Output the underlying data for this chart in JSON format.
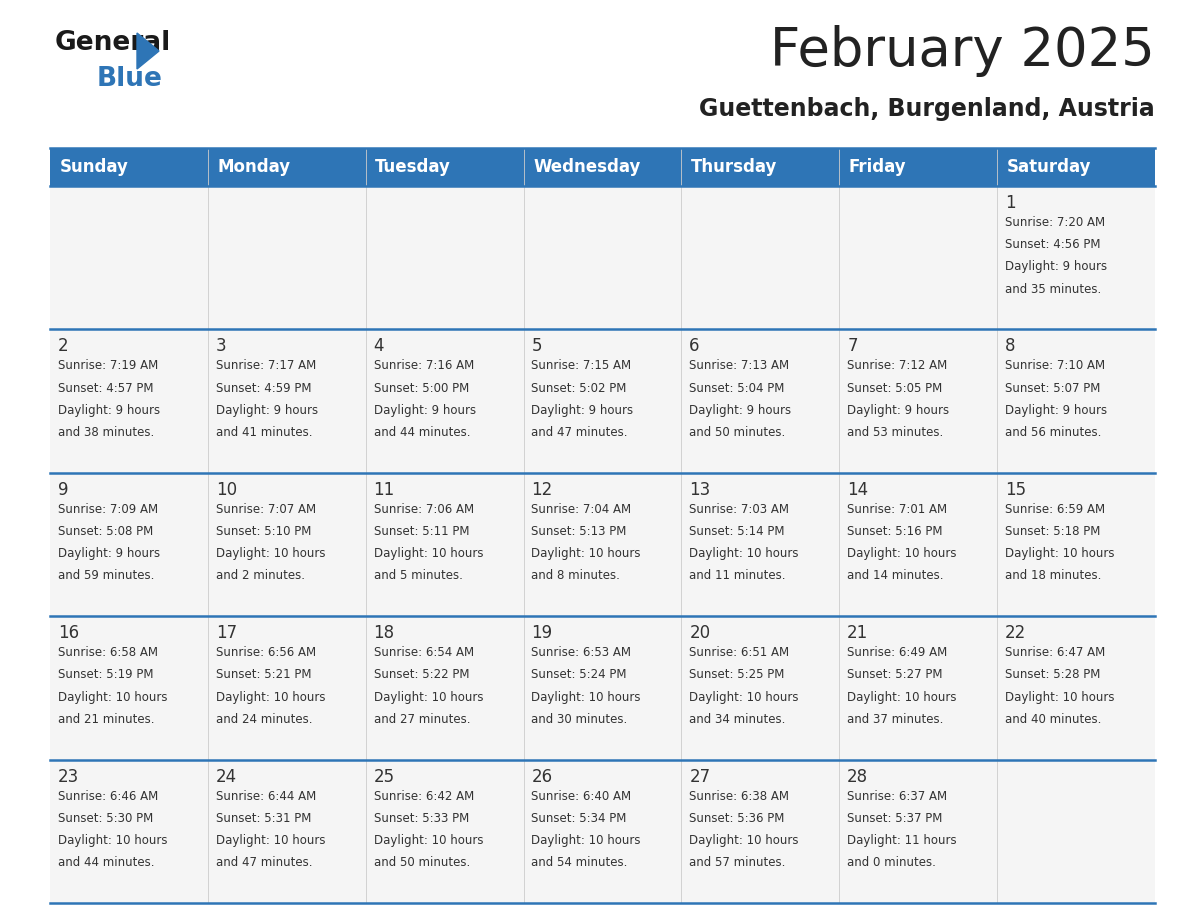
{
  "title": "February 2025",
  "subtitle": "Guettenbach, Burgenland, Austria",
  "header_bg": "#2E75B6",
  "header_text_color": "#FFFFFF",
  "cell_bg": "#F5F5F5",
  "border_color_blue": "#2E75B6",
  "border_color_light": "#BBBBBB",
  "text_color": "#333333",
  "days_of_week": [
    "Sunday",
    "Monday",
    "Tuesday",
    "Wednesday",
    "Thursday",
    "Friday",
    "Saturday"
  ],
  "calendar_data": [
    [
      null,
      null,
      null,
      null,
      null,
      null,
      {
        "day": "1",
        "sunrise": "7:20 AM",
        "sunset": "4:56 PM",
        "daylight_h": "9 hours",
        "daylight_m": "and 35 minutes."
      }
    ],
    [
      {
        "day": "2",
        "sunrise": "7:19 AM",
        "sunset": "4:57 PM",
        "daylight_h": "9 hours",
        "daylight_m": "and 38 minutes."
      },
      {
        "day": "3",
        "sunrise": "7:17 AM",
        "sunset": "4:59 PM",
        "daylight_h": "9 hours",
        "daylight_m": "and 41 minutes."
      },
      {
        "day": "4",
        "sunrise": "7:16 AM",
        "sunset": "5:00 PM",
        "daylight_h": "9 hours",
        "daylight_m": "and 44 minutes."
      },
      {
        "day": "5",
        "sunrise": "7:15 AM",
        "sunset": "5:02 PM",
        "daylight_h": "9 hours",
        "daylight_m": "and 47 minutes."
      },
      {
        "day": "6",
        "sunrise": "7:13 AM",
        "sunset": "5:04 PM",
        "daylight_h": "9 hours",
        "daylight_m": "and 50 minutes."
      },
      {
        "day": "7",
        "sunrise": "7:12 AM",
        "sunset": "5:05 PM",
        "daylight_h": "9 hours",
        "daylight_m": "and 53 minutes."
      },
      {
        "day": "8",
        "sunrise": "7:10 AM",
        "sunset": "5:07 PM",
        "daylight_h": "9 hours",
        "daylight_m": "and 56 minutes."
      }
    ],
    [
      {
        "day": "9",
        "sunrise": "7:09 AM",
        "sunset": "5:08 PM",
        "daylight_h": "9 hours",
        "daylight_m": "and 59 minutes."
      },
      {
        "day": "10",
        "sunrise": "7:07 AM",
        "sunset": "5:10 PM",
        "daylight_h": "10 hours",
        "daylight_m": "and 2 minutes."
      },
      {
        "day": "11",
        "sunrise": "7:06 AM",
        "sunset": "5:11 PM",
        "daylight_h": "10 hours",
        "daylight_m": "and 5 minutes."
      },
      {
        "day": "12",
        "sunrise": "7:04 AM",
        "sunset": "5:13 PM",
        "daylight_h": "10 hours",
        "daylight_m": "and 8 minutes."
      },
      {
        "day": "13",
        "sunrise": "7:03 AM",
        "sunset": "5:14 PM",
        "daylight_h": "10 hours",
        "daylight_m": "and 11 minutes."
      },
      {
        "day": "14",
        "sunrise": "7:01 AM",
        "sunset": "5:16 PM",
        "daylight_h": "10 hours",
        "daylight_m": "and 14 minutes."
      },
      {
        "day": "15",
        "sunrise": "6:59 AM",
        "sunset": "5:18 PM",
        "daylight_h": "10 hours",
        "daylight_m": "and 18 minutes."
      }
    ],
    [
      {
        "day": "16",
        "sunrise": "6:58 AM",
        "sunset": "5:19 PM",
        "daylight_h": "10 hours",
        "daylight_m": "and 21 minutes."
      },
      {
        "day": "17",
        "sunrise": "6:56 AM",
        "sunset": "5:21 PM",
        "daylight_h": "10 hours",
        "daylight_m": "and 24 minutes."
      },
      {
        "day": "18",
        "sunrise": "6:54 AM",
        "sunset": "5:22 PM",
        "daylight_h": "10 hours",
        "daylight_m": "and 27 minutes."
      },
      {
        "day": "19",
        "sunrise": "6:53 AM",
        "sunset": "5:24 PM",
        "daylight_h": "10 hours",
        "daylight_m": "and 30 minutes."
      },
      {
        "day": "20",
        "sunrise": "6:51 AM",
        "sunset": "5:25 PM",
        "daylight_h": "10 hours",
        "daylight_m": "and 34 minutes."
      },
      {
        "day": "21",
        "sunrise": "6:49 AM",
        "sunset": "5:27 PM",
        "daylight_h": "10 hours",
        "daylight_m": "and 37 minutes."
      },
      {
        "day": "22",
        "sunrise": "6:47 AM",
        "sunset": "5:28 PM",
        "daylight_h": "10 hours",
        "daylight_m": "and 40 minutes."
      }
    ],
    [
      {
        "day": "23",
        "sunrise": "6:46 AM",
        "sunset": "5:30 PM",
        "daylight_h": "10 hours",
        "daylight_m": "and 44 minutes."
      },
      {
        "day": "24",
        "sunrise": "6:44 AM",
        "sunset": "5:31 PM",
        "daylight_h": "10 hours",
        "daylight_m": "and 47 minutes."
      },
      {
        "day": "25",
        "sunrise": "6:42 AM",
        "sunset": "5:33 PM",
        "daylight_h": "10 hours",
        "daylight_m": "and 50 minutes."
      },
      {
        "day": "26",
        "sunrise": "6:40 AM",
        "sunset": "5:34 PM",
        "daylight_h": "10 hours",
        "daylight_m": "and 54 minutes."
      },
      {
        "day": "27",
        "sunrise": "6:38 AM",
        "sunset": "5:36 PM",
        "daylight_h": "10 hours",
        "daylight_m": "and 57 minutes."
      },
      {
        "day": "28",
        "sunrise": "6:37 AM",
        "sunset": "5:37 PM",
        "daylight_h": "11 hours",
        "daylight_m": "and 0 minutes."
      },
      null
    ]
  ]
}
